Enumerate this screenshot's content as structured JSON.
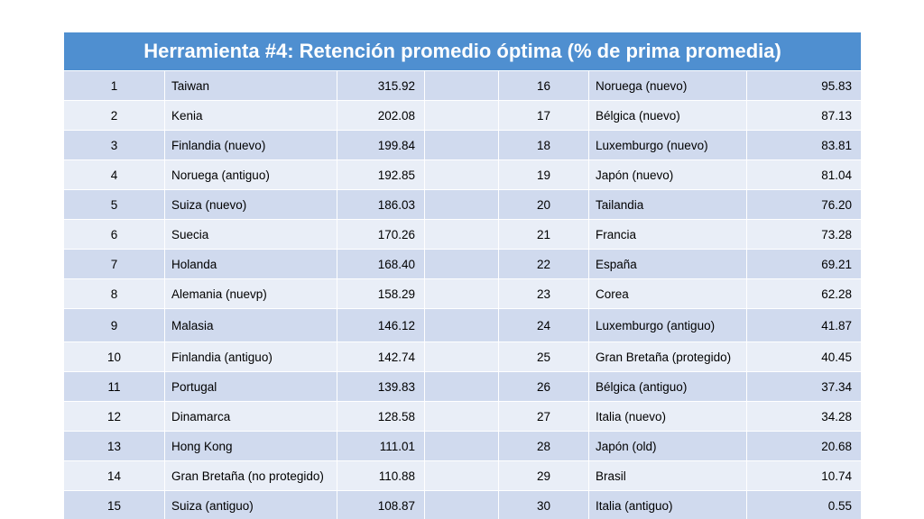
{
  "title": "Herramienta #4: Retención promedio óptima (% de prima promedia)",
  "rows": [
    {
      "r1": "1",
      "n1": "Taiwan",
      "v1": "315.92",
      "r2": "16",
      "n2": "Noruega (nuevo)",
      "v2": "95.83"
    },
    {
      "r1": "2",
      "n1": "Kenia",
      "v1": "202.08",
      "r2": "17",
      "n2": "Bélgica (nuevo)",
      "v2": "87.13"
    },
    {
      "r1": "3",
      "n1": "Finlandia (nuevo)",
      "v1": "199.84",
      "r2": "18",
      "n2": "Luxemburgo (nuevo)",
      "v2": "83.81"
    },
    {
      "r1": "4",
      "n1": "Noruega (antiguo)",
      "v1": "192.85",
      "r2": "19",
      "n2": "Japón (nuevo)",
      "v2": "81.04"
    },
    {
      "r1": "5",
      "n1": "Suiza (nuevo)",
      "v1": "186.03",
      "r2": "20",
      "n2": "Tailandia",
      "v2": "76.20"
    },
    {
      "r1": "6",
      "n1": "Suecia",
      "v1": "170.26",
      "r2": "21",
      "n2": "Francia",
      "v2": "73.28"
    },
    {
      "r1": "7",
      "n1": "Holanda",
      "v1": "168.40",
      "r2": "22",
      "n2": "España",
      "v2": "69.21"
    },
    {
      "r1": "8",
      "n1": "Alemania (nuevp)",
      "v1": "158.29",
      "r2": "23",
      "n2": "Corea",
      "v2": "62.28"
    },
    {
      "r1": "9",
      "n1": "Malasia",
      "v1": "146.12",
      "r2": "24",
      "n2": "Luxemburgo (antiguo)",
      "v2": "41.87"
    },
    {
      "r1": "10",
      "n1": "Finlandia (antiguo)",
      "v1": "142.74",
      "r2": "25",
      "n2": "Gran Bretaña (protegido)",
      "v2": "40.45"
    },
    {
      "r1": "11",
      "n1": "Portugal",
      "v1": "139.83",
      "r2": "26",
      "n2": "Bélgica (antiguo)",
      "v2": "37.34"
    },
    {
      "r1": "12",
      "n1": "Dinamarca",
      "v1": "128.58",
      "r2": "27",
      "n2": "Italia (nuevo)",
      "v2": "34.28"
    },
    {
      "r1": "13",
      "n1": "Hong Kong",
      "v1": "111.01",
      "r2": "28",
      "n2": "Japón (old)",
      "v2": "20.68"
    },
    {
      "r1": "14",
      "n1": "Gran Bretaña (no protegido)",
      "v1": "110.88",
      "r2": "29",
      "n2": "Brasil",
      "v2": "10.74"
    },
    {
      "r1": "15",
      "n1": "Suiza (antiguo)",
      "v1": "108.87",
      "r2": "30",
      "n2": "Italia (antiguo)",
      "v2": "0.55"
    }
  ]
}
